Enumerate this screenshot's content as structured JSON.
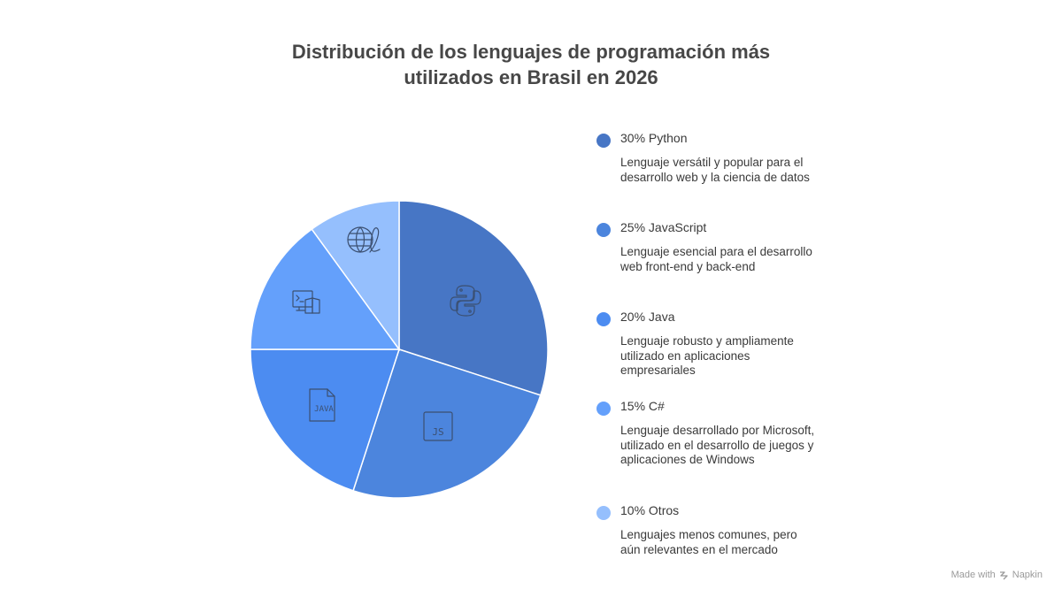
{
  "title": {
    "line1": "Distribución de los lenguajes de programación más",
    "line2": "utilizados en Brasil en 2026"
  },
  "chart_data": {
    "type": "pie",
    "title": "Distribución de los lenguajes de programación más utilizados en Brasil en 2026",
    "legend_placement": "right",
    "slices": [
      {
        "name": "Python",
        "value": 30,
        "label": "30% Python",
        "description": "Lenguaje versátil y popular para el desarrollo web y la ciencia de datos",
        "color": "#4776c5",
        "icon": "python-icon"
      },
      {
        "name": "JavaScript",
        "value": 25,
        "label": "25% JavaScript",
        "description": "Lenguaje esencial para el desarrollo web front-end y back-end",
        "color": "#4c85dd",
        "icon": "js-file-icon"
      },
      {
        "name": "Java",
        "value": 20,
        "label": "20% Java",
        "description": "Lenguaje robusto y ampliamente utilizado en aplicaciones empresariales",
        "color": "#4c8cf1",
        "icon": "java-file-icon"
      },
      {
        "name": "C#",
        "value": 15,
        "label": "15% C#",
        "description": "Lenguaje desarrollado por Microsoft, utilizado en el desarrollo de juegos y aplicaciones de Windows",
        "color": "#64a0fb",
        "icon": "terminal-book-icon"
      },
      {
        "name": "Otros",
        "value": 10,
        "label": "10% Otros",
        "description": "Lenguajes menos comunes, pero aún relevantes en el mercado",
        "color": "#95bffd",
        "icon": "globe-script-icon"
      }
    ]
  },
  "footer": {
    "made_with": "Made with",
    "brand": "Napkin"
  }
}
